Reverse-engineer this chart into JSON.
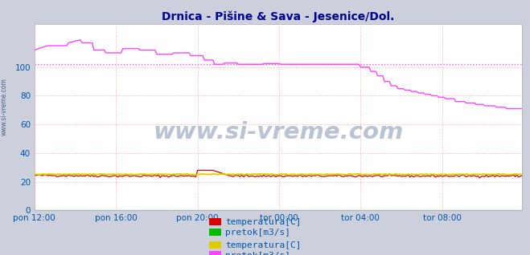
{
  "title": "Drnica - Pišine & Sava - Jesenice/Dol.",
  "title_color": "#000099",
  "bg_color": "#ccd0dc",
  "plot_bg_color": "#ffffff",
  "grid_color": "#ffaaaa",
  "grid_style": ":",
  "xlabel": "",
  "ylabel": "",
  "xlim": [
    0,
    287
  ],
  "ylim": [
    0,
    130
  ],
  "yticks": [
    0,
    20,
    40,
    60,
    80,
    100
  ],
  "xtick_labels": [
    "pon 12:00",
    "pon 16:00",
    "pon 20:00",
    "tor 00:00",
    "tor 04:00",
    "tor 08:00"
  ],
  "xtick_positions": [
    0,
    48,
    96,
    144,
    192,
    240
  ],
  "hline_value": 102,
  "hline_color": "#ff44ff",
  "hline_style": ":",
  "watermark": "www.si-vreme.com",
  "watermark_color": "#1a3a6e",
  "watermark_alpha": 0.3,
  "sidebar_text": "www.si-vreme.com",
  "sidebar_color": "#1a3a6e",
  "line1_color": "#dd0000",
  "line2_color": "#00bb00",
  "line3_color": "#ddcc00",
  "line4_color": "#ff44ff",
  "legend1_label1": "temperatura[C]",
  "legend1_label2": "pretok[m3/s]",
  "legend2_label1": "temperatura[C]",
  "legend2_label2": "pretok[m3/s]",
  "legend_color": "#0055aa",
  "legend_fontsize": 8.0,
  "tick_color": "#0055aa",
  "tick_fontsize": 7.5
}
